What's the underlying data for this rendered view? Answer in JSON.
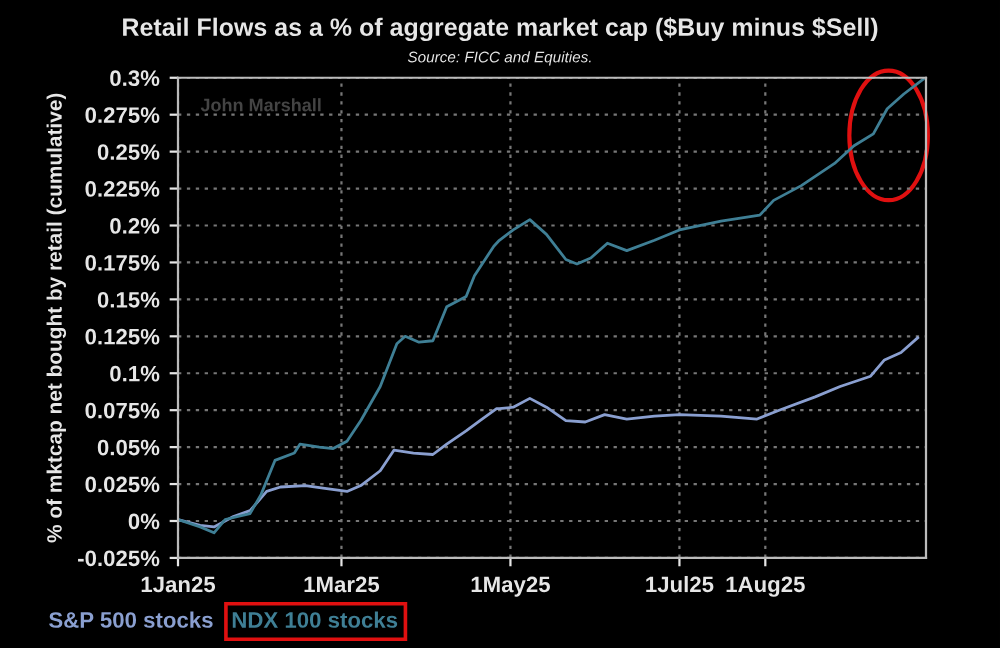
{
  "chart_data": {
    "type": "line",
    "title": "Retail Flows as a % of aggregate market cap ($Buy minus $Sell)",
    "subtitle": "Source: FICC and Equities.",
    "ylabel": "% of mktcap net bought by retail (cumulative)",
    "annotations": [
      "John Marshall"
    ],
    "xlim": [
      "2025-01-01",
      "2025-09-28"
    ],
    "xticks": [
      {
        "value": "2025-01-01",
        "label": "1Jan25"
      },
      {
        "value": "2025-03-01",
        "label": "1Mar25"
      },
      {
        "value": "2025-05-01",
        "label": "1May25"
      },
      {
        "value": "2025-07-01",
        "label": "1Jul25"
      },
      {
        "value": "2025-08-01",
        "label": "1Aug25"
      }
    ],
    "ylim": [
      -0.025,
      0.3
    ],
    "yticks": [
      {
        "value": -0.025,
        "label": "-0.025%"
      },
      {
        "value": 0,
        "label": "0%"
      },
      {
        "value": 0.025,
        "label": "0.025%"
      },
      {
        "value": 0.05,
        "label": "0.05%"
      },
      {
        "value": 0.075,
        "label": "0.075%"
      },
      {
        "value": 0.1,
        "label": "0.1%"
      },
      {
        "value": 0.125,
        "label": "0.125%"
      },
      {
        "value": 0.15,
        "label": "0.15%"
      },
      {
        "value": 0.175,
        "label": "0.175%"
      },
      {
        "value": 0.2,
        "label": "0.2%"
      },
      {
        "value": 0.225,
        "label": "0.225%"
      },
      {
        "value": 0.25,
        "label": "0.25%"
      },
      {
        "value": 0.275,
        "label": "0.275%"
      },
      {
        "value": 0.3,
        "label": "0.3%"
      }
    ],
    "grid": true,
    "legend": "bottom left",
    "marker": "none",
    "line_style": "solid",
    "series": [
      {
        "name": "S&P 500 stocks",
        "color": "#8a9fd0",
        "x": [
          "2025-01-01",
          "2025-01-09",
          "2025-01-14",
          "2025-01-21",
          "2025-01-27",
          "2025-02-02",
          "2025-02-07",
          "2025-02-16",
          "2025-02-23",
          "2025-03-03",
          "2025-03-08",
          "2025-03-15",
          "2025-03-20",
          "2025-03-27",
          "2025-04-03",
          "2025-04-08",
          "2025-04-15",
          "2025-04-20",
          "2025-04-26",
          "2025-04-27",
          "2025-05-02",
          "2025-05-08",
          "2025-05-14",
          "2025-05-21",
          "2025-05-28",
          "2025-06-04",
          "2025-06-12",
          "2025-06-22",
          "2025-07-01",
          "2025-07-16",
          "2025-07-29",
          "2025-08-06",
          "2025-08-19",
          "2025-08-28",
          "2025-09-08",
          "2025-09-13",
          "2025-09-19",
          "2025-09-25"
        ],
        "values": [
          0.001,
          -0.003,
          -0.004,
          0.003,
          0.007,
          0.02,
          0.023,
          0.024,
          0.022,
          0.02,
          0.024,
          0.034,
          0.048,
          0.046,
          0.045,
          0.052,
          0.061,
          0.068,
          0.076,
          0.076,
          0.077,
          0.083,
          0.077,
          0.068,
          0.067,
          0.072,
          0.069,
          0.071,
          0.072,
          0.071,
          0.069,
          0.075,
          0.084,
          0.091,
          0.098,
          0.109,
          0.114,
          0.124
        ]
      },
      {
        "name": "NDX 100 stocks",
        "color": "#3f7f95",
        "x": [
          "2025-01-01",
          "2025-01-09",
          "2025-01-14",
          "2025-01-18",
          "2025-01-27",
          "2025-01-31",
          "2025-02-05",
          "2025-02-12",
          "2025-02-14",
          "2025-02-21",
          "2025-02-26",
          "2025-03-03",
          "2025-03-08",
          "2025-03-15",
          "2025-03-21",
          "2025-03-24",
          "2025-03-29",
          "2025-04-03",
          "2025-04-08",
          "2025-04-15",
          "2025-04-18",
          "2025-04-25",
          "2025-04-27",
          "2025-05-02",
          "2025-05-08",
          "2025-05-14",
          "2025-05-21",
          "2025-05-25",
          "2025-05-30",
          "2025-06-05",
          "2025-06-12",
          "2025-06-22",
          "2025-07-01",
          "2025-07-16",
          "2025-07-30",
          "2025-08-04",
          "2025-08-14",
          "2025-08-26",
          "2025-09-02",
          "2025-09-09",
          "2025-09-14",
          "2025-09-20",
          "2025-09-27"
        ],
        "values": [
          0.001,
          -0.004,
          -0.008,
          0.001,
          0.005,
          0.018,
          0.041,
          0.046,
          0.052,
          0.05,
          0.049,
          0.054,
          0.068,
          0.091,
          0.12,
          0.125,
          0.121,
          0.122,
          0.145,
          0.152,
          0.166,
          0.186,
          0.19,
          0.197,
          0.204,
          0.194,
          0.177,
          0.174,
          0.178,
          0.188,
          0.183,
          0.19,
          0.197,
          0.203,
          0.207,
          0.217,
          0.227,
          0.242,
          0.254,
          0.262,
          0.279,
          0.289,
          0.299
        ]
      }
    ]
  }
}
